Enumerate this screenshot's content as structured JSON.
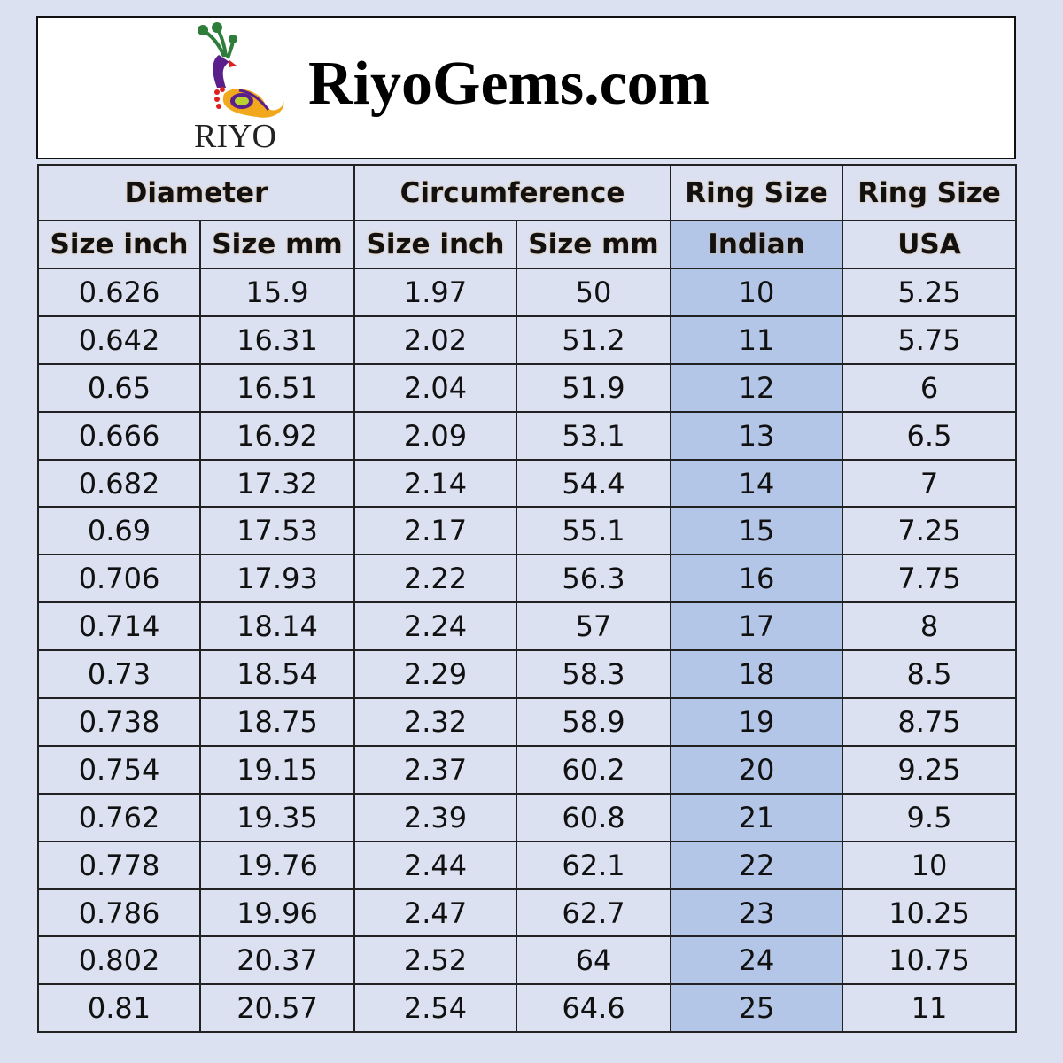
{
  "brand": {
    "site_title": "RiyoGems.com",
    "logo_text": "RIYO",
    "logo_icon": "peacock-paisley-logo"
  },
  "colors": {
    "background": "#dbe1f1",
    "highlight_column": "#b4c6e7"
  },
  "table": {
    "group_headers": [
      "Diameter",
      "Circumference",
      "Ring Size",
      "Ring Size"
    ],
    "sub_headers": [
      "Size inch",
      "Size mm",
      "Size inch",
      "Size mm",
      "Indian",
      "USA"
    ],
    "rows": [
      [
        "0.626",
        "15.9",
        "1.97",
        "50",
        "10",
        "5.25"
      ],
      [
        "0.642",
        "16.31",
        "2.02",
        "51.2",
        "11",
        "5.75"
      ],
      [
        "0.65",
        "16.51",
        "2.04",
        "51.9",
        "12",
        "6"
      ],
      [
        "0.666",
        "16.92",
        "2.09",
        "53.1",
        "13",
        "6.5"
      ],
      [
        "0.682",
        "17.32",
        "2.14",
        "54.4",
        "14",
        "7"
      ],
      [
        "0.69",
        "17.53",
        "2.17",
        "55.1",
        "15",
        "7.25"
      ],
      [
        "0.706",
        "17.93",
        "2.22",
        "56.3",
        "16",
        "7.75"
      ],
      [
        "0.714",
        "18.14",
        "2.24",
        "57",
        "17",
        "8"
      ],
      [
        "0.73",
        "18.54",
        "2.29",
        "58.3",
        "18",
        "8.5"
      ],
      [
        "0.738",
        "18.75",
        "2.32",
        "58.9",
        "19",
        "8.75"
      ],
      [
        "0.754",
        "19.15",
        "2.37",
        "60.2",
        "20",
        "9.25"
      ],
      [
        "0.762",
        "19.35",
        "2.39",
        "60.8",
        "21",
        "9.5"
      ],
      [
        "0.778",
        "19.76",
        "2.44",
        "62.1",
        "22",
        "10"
      ],
      [
        "0.786",
        "19.96",
        "2.47",
        "62.7",
        "23",
        "10.25"
      ],
      [
        "0.802",
        "20.37",
        "2.52",
        "64",
        "24",
        "10.75"
      ],
      [
        "0.81",
        "20.57",
        "2.54",
        "64.6",
        "25",
        "11"
      ]
    ]
  }
}
